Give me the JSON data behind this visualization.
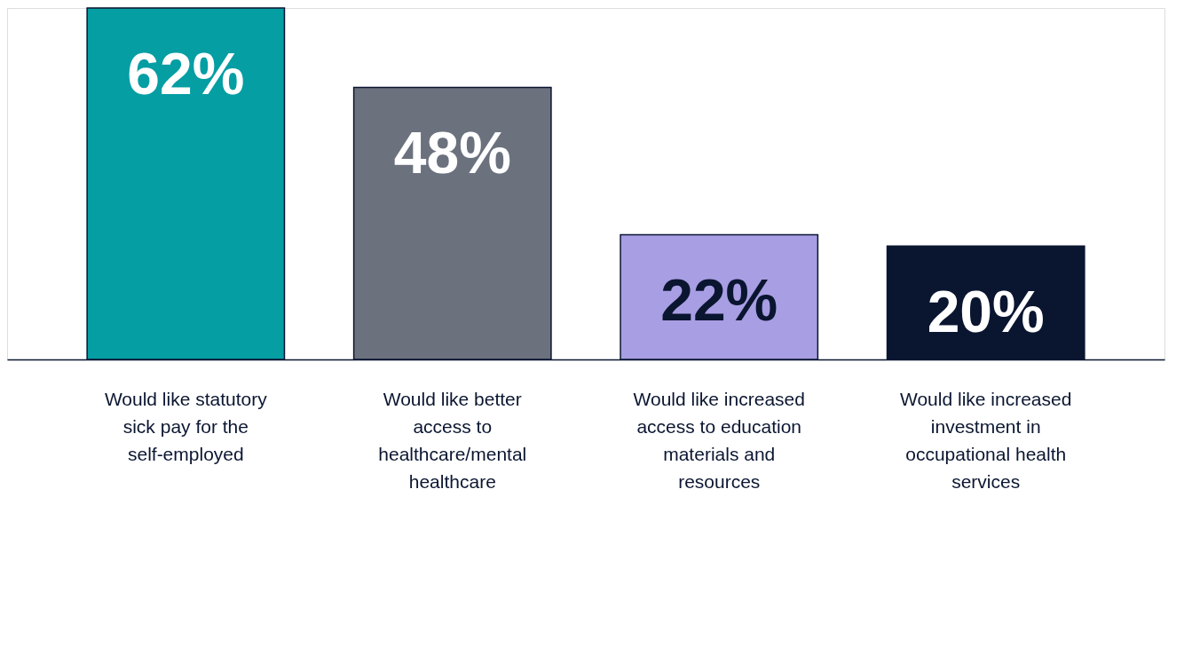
{
  "chart_data": {
    "type": "bar",
    "categories": [
      "Would like statutory sick pay for the self-employed",
      "Would like better access to healthcare/mental healthcare",
      "Would like increased access to education materials and resources",
      "Would like increased investment in occupational health services"
    ],
    "values": [
      62,
      48,
      22,
      20
    ],
    "colors": [
      "#049ea3",
      "#6c717e",
      "#a89ee3",
      "#0a1530"
    ],
    "value_labels": [
      "62%",
      "48%",
      "22%",
      "20%"
    ]
  }
}
